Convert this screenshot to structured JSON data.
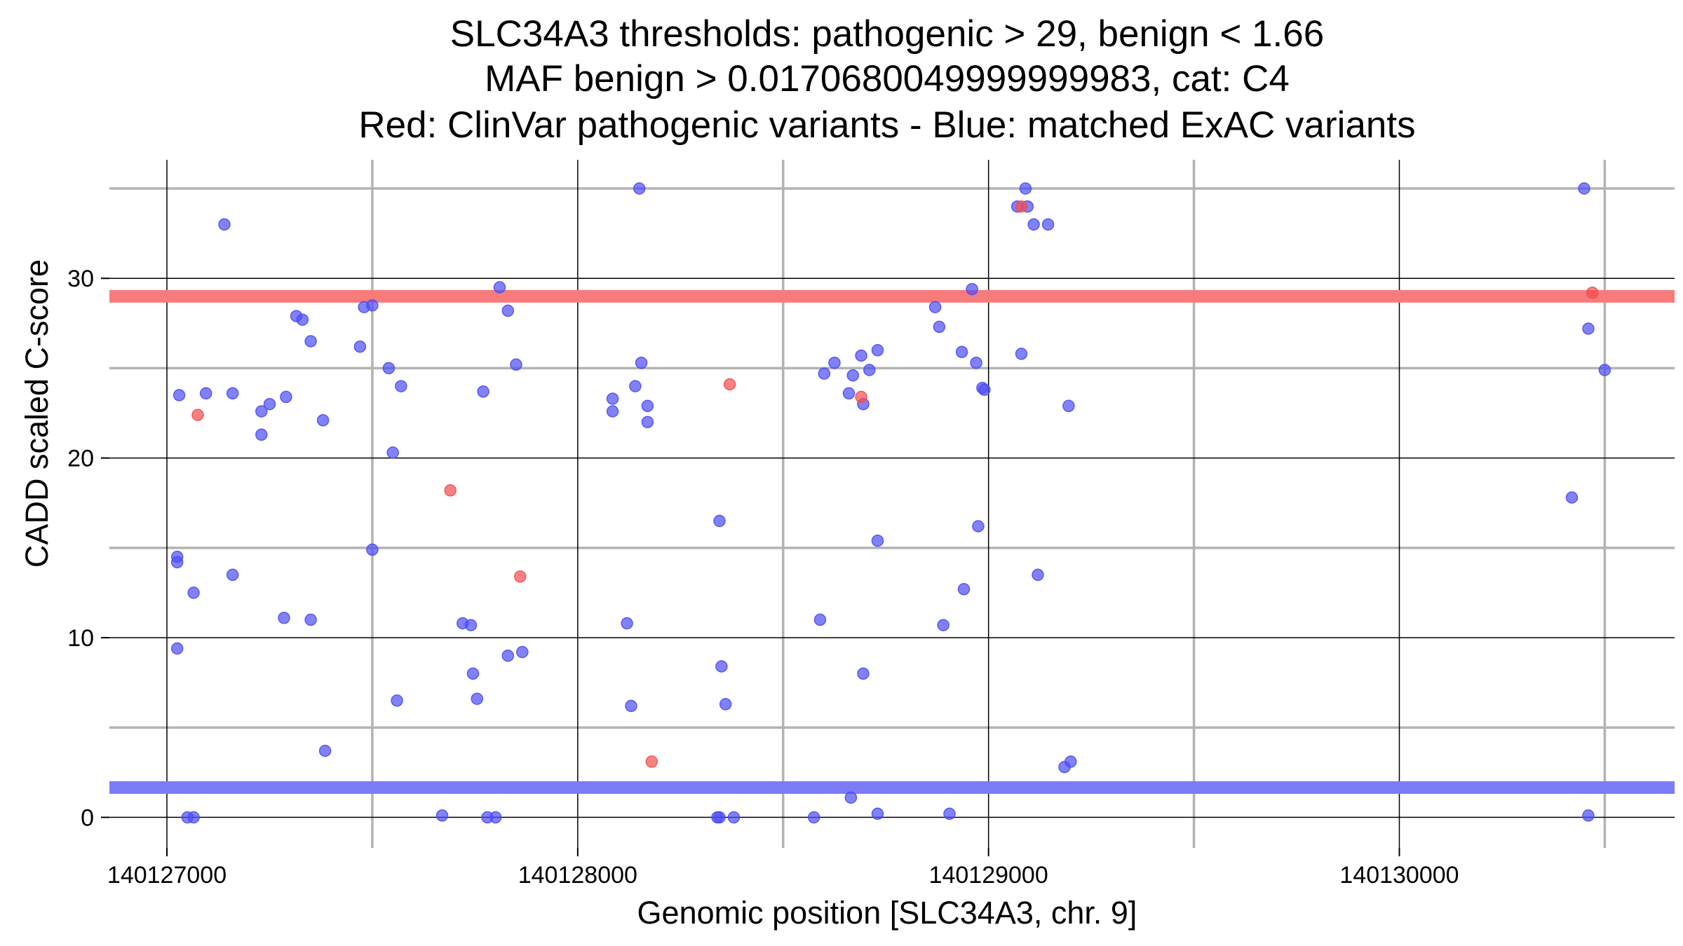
{
  "chart_data": {
    "type": "scatter",
    "title": [
      "SLC34A3 thresholds: pathogenic > 29, benign < 1.66",
      "MAF benign > 0.0170680049999999983, cat: C4",
      "Red: ClinVar pathogenic variants - Blue: matched ExAC variants"
    ],
    "xlabel": "Genomic position [SLC34A3, chr. 9]",
    "ylabel": "CADD scaled C-score",
    "xlim": [
      140126860,
      140130670
    ],
    "ylim": [
      -1.7,
      36.6
    ],
    "x_ticks": [
      140127000,
      140128000,
      140129000,
      140130000
    ],
    "x_tick_labels": [
      "140127000",
      "140128000",
      "140129000",
      "140130000"
    ],
    "x_minor_ticks": [
      140127500,
      140128500,
      140129500,
      140130500
    ],
    "y_ticks": [
      0,
      10,
      20,
      30
    ],
    "y_tick_labels": [
      "0",
      "10",
      "20",
      "30"
    ],
    "y_minor_ticks": [
      5,
      15,
      25,
      35
    ],
    "grid": true,
    "thresholds": [
      {
        "name": "pathogenic",
        "value": 29,
        "color": "#f87b7b"
      },
      {
        "name": "benign",
        "value": 1.66,
        "color": "#7b7bf8"
      }
    ],
    "series": [
      {
        "color": "#4d4df5",
        "points": [
          [
            140127140,
            33
          ],
          [
            140127030,
            23.5
          ],
          [
            140127095,
            23.6
          ],
          [
            140127160,
            23.6
          ],
          [
            140127230,
            21.3
          ],
          [
            140127230,
            22.6
          ],
          [
            140127250,
            23.0
          ],
          [
            140127290,
            23.4
          ],
          [
            140127315,
            27.9
          ],
          [
            140127330,
            27.7
          ],
          [
            140127350,
            26.5
          ],
          [
            140127380,
            22.1
          ],
          [
            140127470,
            26.2
          ],
          [
            140127480,
            28.4
          ],
          [
            140127500,
            28.5
          ],
          [
            140127540,
            25.0
          ],
          [
            140127570,
            24.0
          ],
          [
            140127810,
            29.5
          ],
          [
            140127830,
            28.2
          ],
          [
            140127850,
            25.2
          ],
          [
            140127770,
            23.7
          ],
          [
            140127025,
            14.5
          ],
          [
            140127025,
            14.2
          ],
          [
            140127065,
            12.5
          ],
          [
            140127160,
            13.5
          ],
          [
            140127285,
            11.1
          ],
          [
            140127350,
            11.0
          ],
          [
            140127500,
            14.9
          ],
          [
            140127550,
            20.3
          ],
          [
            140127025,
            9.4
          ],
          [
            140127720,
            10.8
          ],
          [
            140127740,
            10.7
          ],
          [
            140127745,
            8.0
          ],
          [
            140127755,
            6.6
          ],
          [
            140127830,
            9.0
          ],
          [
            140127865,
            9.2
          ],
          [
            140127560,
            6.5
          ],
          [
            140127385,
            3.7
          ],
          [
            140127050,
            0
          ],
          [
            140127065,
            0
          ],
          [
            140127670,
            0.1
          ],
          [
            140127780,
            0
          ],
          [
            140127800,
            0
          ],
          [
            140128150,
            35.0
          ],
          [
            140128155,
            25.3
          ],
          [
            140128140,
            24.0
          ],
          [
            140128085,
            23.3
          ],
          [
            140128085,
            22.6
          ],
          [
            140128170,
            22.9
          ],
          [
            140128170,
            22.0
          ],
          [
            140128345,
            16.5
          ],
          [
            140128120,
            10.8
          ],
          [
            140128130,
            6.2
          ],
          [
            140128350,
            8.4
          ],
          [
            140128360,
            6.3
          ],
          [
            140128340,
            0
          ],
          [
            140128345,
            0
          ],
          [
            140128380,
            0
          ],
          [
            140128600,
            24.7
          ],
          [
            140128625,
            25.3
          ],
          [
            140128690,
            25.7
          ],
          [
            140128670,
            24.6
          ],
          [
            140128710,
            24.9
          ],
          [
            140128730,
            26.0
          ],
          [
            140128660,
            23.6
          ],
          [
            140128695,
            23.0
          ],
          [
            140128870,
            28.4
          ],
          [
            140128880,
            27.3
          ],
          [
            140128960,
            29.4
          ],
          [
            140128935,
            25.9
          ],
          [
            140128970,
            25.3
          ],
          [
            140128985,
            23.9
          ],
          [
            140128990,
            23.8
          ],
          [
            140129080,
            25.8
          ],
          [
            140128730,
            15.4
          ],
          [
            140128975,
            16.2
          ],
          [
            140128940,
            12.7
          ],
          [
            140128890,
            10.7
          ],
          [
            140129120,
            13.5
          ],
          [
            140128590,
            11.0
          ],
          [
            140128695,
            8.0
          ],
          [
            140129090,
            35.0
          ],
          [
            140129070,
            34.0
          ],
          [
            140129095,
            34.0
          ],
          [
            140129110,
            33.0
          ],
          [
            140129145,
            33.0
          ],
          [
            140129195,
            22.9
          ],
          [
            140129185,
            2.8
          ],
          [
            140129200,
            3.1
          ],
          [
            140128575,
            0
          ],
          [
            140128665,
            1.1
          ],
          [
            140128730,
            0.2
          ],
          [
            140128905,
            0.2
          ],
          [
            140130450,
            35.0
          ],
          [
            140130420,
            17.8
          ],
          [
            140130460,
            27.2
          ],
          [
            140130500,
            24.9
          ],
          [
            140130460,
            0.1
          ]
        ]
      },
      {
        "color": "#f54d4d",
        "points": [
          [
            140127075,
            22.4
          ],
          [
            140127690,
            18.2
          ],
          [
            140127860,
            13.4
          ],
          [
            140128180,
            3.1
          ],
          [
            140128370,
            24.1
          ],
          [
            140128690,
            23.4
          ],
          [
            140129080,
            34.0
          ],
          [
            140130470,
            29.2
          ]
        ]
      }
    ]
  }
}
